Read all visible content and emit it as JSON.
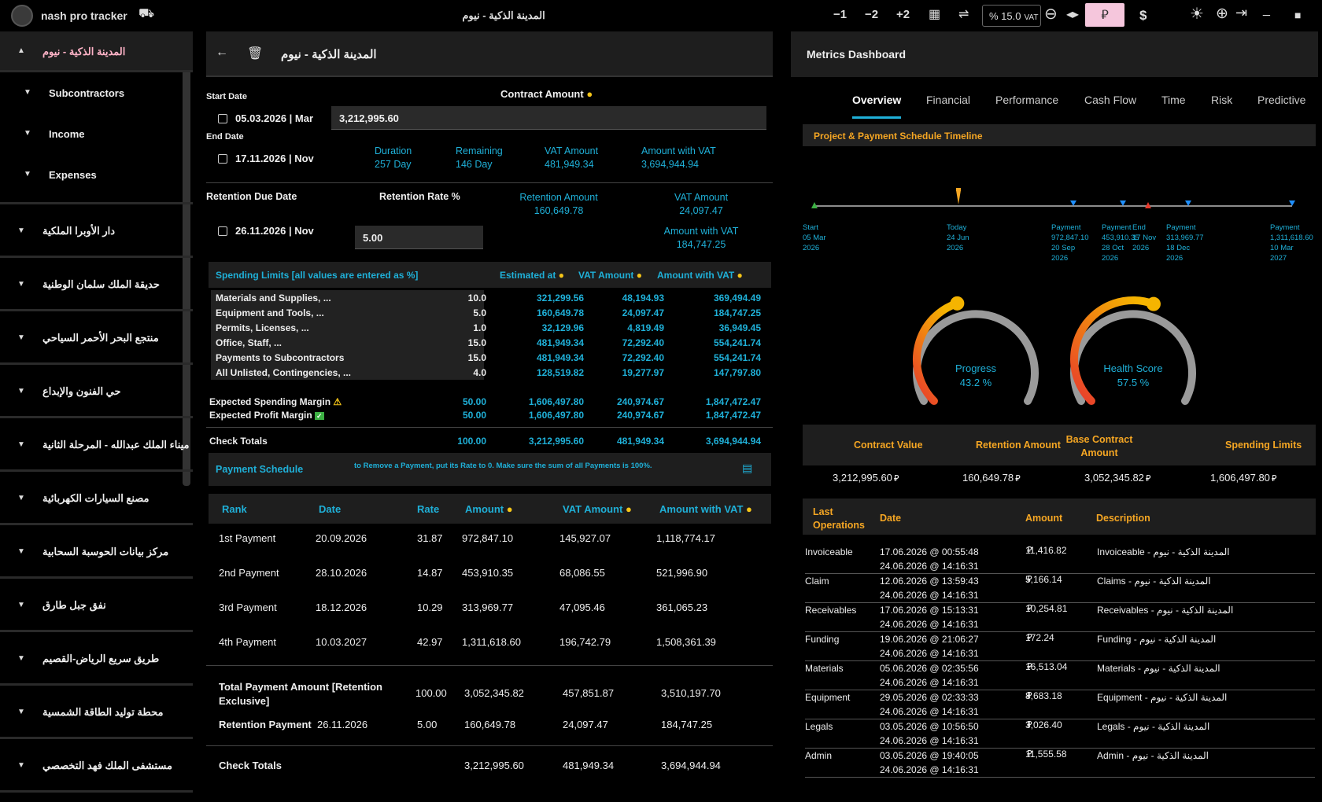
{
  "app": {
    "name": "nash pro tracker",
    "window_title": "المدينة الذكية - نيوم",
    "btn_minus1": "−1",
    "btn_minus2": "−2",
    "btn_plus2": "+2",
    "vat_value": "% 15.0",
    "vat_label": "VAT",
    "riyal": "⃁",
    "dollar": "$"
  },
  "sidebar": {
    "items": [
      {
        "label": "المدينة الذكية - نيوم"
      },
      {
        "label": "Subcontractors"
      },
      {
        "label": "Income"
      },
      {
        "label": "Expenses"
      },
      {
        "label": "دار الأوبرا الملكية"
      },
      {
        "label": "حديقة الملك سلمان الوطنية"
      },
      {
        "label": "منتجع البحر الأحمر السياحي"
      },
      {
        "label": "حي الفنون والإبداع"
      },
      {
        "label": "ميناء الملك عبدالله - المرحلة الثانية"
      },
      {
        "label": "مصنع السيارات الكهربائية"
      },
      {
        "label": "مركز بيانات الحوسبة السحابية"
      },
      {
        "label": "نفق جبل طارق"
      },
      {
        "label": "طريق سريع الرياض-القصيم"
      },
      {
        "label": "محطة توليد الطاقة الشمسية"
      },
      {
        "label": "مستشفى الملك فهد التخصصي"
      }
    ]
  },
  "project": {
    "title": "المدينة الذكية - نيوم",
    "start_label": "Start Date",
    "start_value": "05.03.2026 | Mar",
    "end_label": "End Date",
    "end_value": "17.11.2026 | Nov",
    "contract_label": "Contract Amount",
    "contract_value": "3,212,995.60",
    "duration_label": "Duration",
    "duration_value": "257 Day",
    "remaining_label": "Remaining",
    "remaining_value": "146 Day",
    "vat_label": "VAT Amount",
    "vat_value": "481,949.34",
    "with_vat_label": "Amount with VAT",
    "with_vat_value": "3,694,944.94",
    "ret_due_label": "Retention Due Date",
    "ret_due_value": "26.11.2026 | Nov",
    "ret_rate_label": "Retention Rate %",
    "ret_rate_value": "5.00",
    "ret_amount_label": "Retention Amount",
    "ret_amount_value": "160,649.78",
    "ret_vat_label": "VAT Amount",
    "ret_vat_value": "24,097.47",
    "ret_with_vat_label": "Amount with VAT",
    "ret_with_vat_value": "184,747.25"
  },
  "spending": {
    "title": "Spending Limits [all values are entered as %]",
    "col_est": "Estimated at",
    "col_vat": "VAT Amount",
    "col_with": "Amount with VAT",
    "rows": [
      {
        "name": "Materials and Supplies, ...",
        "pct": "10.0",
        "est": "321,299.56",
        "vat": "48,194.93",
        "with": "369,494.49"
      },
      {
        "name": "Equipment and Tools, ...",
        "pct": "5.0",
        "est": "160,649.78",
        "vat": "24,097.47",
        "with": "184,747.25"
      },
      {
        "name": "Permits, Licenses, ...",
        "pct": "1.0",
        "est": "32,129.96",
        "vat": "4,819.49",
        "with": "36,949.45"
      },
      {
        "name": "Office, Staff, ...",
        "pct": "15.0",
        "est": "481,949.34",
        "vat": "72,292.40",
        "with": "554,241.74"
      },
      {
        "name": "Payments to Subcontractors",
        "pct": "15.0",
        "est": "481,949.34",
        "vat": "72,292.40",
        "with": "554,241.74"
      },
      {
        "name": "All Unlisted, Contingencies, ...",
        "pct": "4.0",
        "est": "128,519.82",
        "vat": "19,277.97",
        "with": "147,797.80"
      }
    ],
    "margin_spend": {
      "label": "Expected Spending Margin",
      "pct": "50.00",
      "est": "1,606,497.80",
      "vat": "240,974.67",
      "with": "1,847,472.47"
    },
    "margin_profit": {
      "label": "Expected Profit Margin",
      "pct": "50.00",
      "est": "1,606,497.80",
      "vat": "240,974.67",
      "with": "1,847,472.47"
    },
    "check": {
      "label": "Check Totals",
      "pct": "100.00",
      "est": "3,212,995.60",
      "vat": "481,949.34",
      "with": "3,694,944.94"
    }
  },
  "payments": {
    "title": "Payment Schedule",
    "hint": "to Remove a Payment, put its Rate to 0. Make sure the sum of all Payments is 100%.",
    "cols": {
      "rank": "Rank",
      "date": "Date",
      "rate": "Rate",
      "amount": "Amount",
      "vat": "VAT Amount",
      "with": "Amount with VAT"
    },
    "rows": [
      {
        "rank": "1st Payment",
        "date": "20.09.2026",
        "rate": "31.87",
        "amount": "972,847.10",
        "vat": "145,927.07",
        "with": "1,118,774.17"
      },
      {
        "rank": "2nd Payment",
        "date": "28.10.2026",
        "rate": "14.87",
        "amount": "453,910.35",
        "vat": "68,086.55",
        "with": "521,996.90"
      },
      {
        "rank": "3rd Payment",
        "date": "18.12.2026",
        "rate": "10.29",
        "amount": "313,969.77",
        "vat": "47,095.46",
        "with": "361,065.23"
      },
      {
        "rank": "4th Payment",
        "date": "10.03.2027",
        "rate": "42.97",
        "amount": "1,311,618.60",
        "vat": "196,742.79",
        "with": "1,508,361.39"
      }
    ],
    "total": {
      "label": "Total Payment Amount [Retention Exclusive]",
      "rate": "100.00",
      "amount": "3,052,345.82",
      "vat": "457,851.87",
      "with": "3,510,197.70"
    },
    "retention": {
      "label": "Retention Payment",
      "date": "26.11.2026",
      "rate": "5.00",
      "amount": "160,649.78",
      "vat": "24,097.47",
      "with": "184,747.25"
    },
    "check": {
      "label": "Check Totals",
      "amount": "3,212,995.60",
      "vat": "481,949.34",
      "with": "3,694,944.94"
    }
  },
  "metrics": {
    "title": "Metrics Dashboard",
    "tabs": [
      "Overview",
      "Financial",
      "Performance",
      "Cash Flow",
      "Time",
      "Risk",
      "Predictive"
    ],
    "timeline_title": "Project & Payment Schedule Timeline",
    "timeline": [
      {
        "l1": "Start",
        "l2": "05 Mar",
        "l3": "2026",
        "l4": ""
      },
      {
        "l1": "Today",
        "l2": "24 Jun",
        "l3": "2026",
        "l4": ""
      },
      {
        "l1": "Payment",
        "l2": "972,847.10",
        "l3": "20 Sep",
        "l4": "2026"
      },
      {
        "l1": "Payment",
        "l2": "453,910.35",
        "l3": "28 Oct",
        "l4": "2026"
      },
      {
        "l1": "End",
        "l2": "17 Nov",
        "l3": "2026",
        "l4": ""
      },
      {
        "l1": "Payment",
        "l2": "313,969.77",
        "l3": "18 Dec",
        "l4": "2026"
      },
      {
        "l1": "Payment",
        "l2": "1,311,618.60",
        "l3": "10 Mar",
        "l4": "2027"
      }
    ],
    "gauge_progress": {
      "label": "Progress",
      "value": "43.2 %",
      "fraction": 0.432
    },
    "gauge_health": {
      "label": "Health Score",
      "value": "57.5 %",
      "fraction": 0.575
    },
    "summary": {
      "h1": "Contract Value",
      "h2": "Retention Amount",
      "h3": "Base Contract Amount",
      "h4": "Spending Limits",
      "v1": "3,212,995.60",
      "v2": "160,649.78",
      "v3": "3,052,345.82",
      "v4": "1,606,497.80"
    },
    "ops_cols": {
      "op": "Last Operations",
      "date": "Date",
      "amount": "Amount",
      "desc": "Description"
    },
    "ops": [
      {
        "op": "Invoiceable",
        "d1": "17.06.2026 @ 00:55:48",
        "d2": "24.06.2026 @ 14:16:31",
        "amount": "11,416.82",
        "desc": "Invoiceable - المدينة الذكية - نيوم"
      },
      {
        "op": "Claim",
        "d1": "12.06.2026 @ 13:59:43",
        "d2": "24.06.2026 @ 14:16:31",
        "amount": "5,166.14",
        "desc": "Claims - المدينة الذكية - نيوم"
      },
      {
        "op": "Receivables",
        "d1": "17.06.2026 @ 15:13:31",
        "d2": "24.06.2026 @ 14:16:31",
        "amount": "10,254.81",
        "desc": "Receivables - المدينة الذكية - نيوم"
      },
      {
        "op": "Funding",
        "d1": "19.06.2026 @ 21:06:27",
        "d2": "24.06.2026 @ 14:16:31",
        "amount": "172.24",
        "desc": "Funding - المدينة الذكية - نيوم"
      },
      {
        "op": "Materials",
        "d1": "05.06.2026 @ 02:35:56",
        "d2": "24.06.2026 @ 14:16:31",
        "amount": "16,513.04",
        "desc": "Materials - المدينة الذكية - نيوم"
      },
      {
        "op": "Equipment",
        "d1": "29.05.2026 @ 02:33:33",
        "d2": "24.06.2026 @ 14:16:31",
        "amount": "8,683.18",
        "desc": "Equipment - المدينة الذكية - نيوم"
      },
      {
        "op": "Legals",
        "d1": "03.05.2026 @ 10:56:50",
        "d2": "24.06.2026 @ 14:16:31",
        "amount": "3,026.40",
        "desc": "Legals - المدينة الذكية - نيوم"
      },
      {
        "op": "Admin",
        "d1": "03.05.2026 @ 19:40:05",
        "d2": "24.06.2026 @ 14:16:31",
        "amount": "11,555.58",
        "desc": "Admin - المدينة الذكية - نيوم"
      }
    ]
  },
  "colors": {
    "accent": "#1fb0d8",
    "orange": "#f5a623",
    "pink": "#ffb3c7",
    "gauge_red": "#e83a2c",
    "gauge_yellow": "#f5b400",
    "gauge_grey": "#9a9a9a"
  }
}
